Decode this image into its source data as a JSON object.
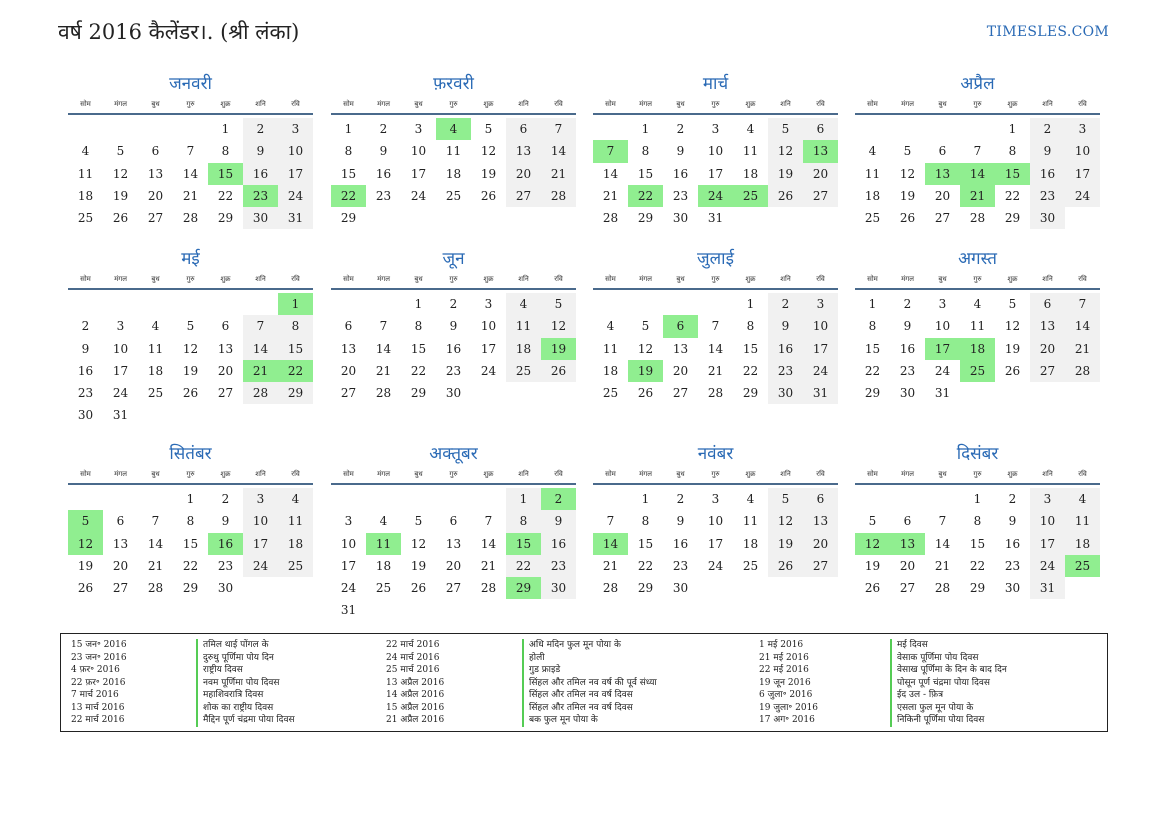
{
  "header": {
    "title": "वर्ष 2016 कैलेंडर।. (श्री लंका)",
    "site": "TIMESLES.COM"
  },
  "weekdays": [
    "सोम",
    "मंगल",
    "बुध",
    "गुरु",
    "शुक्र",
    "शनि",
    "रवि"
  ],
  "months": [
    {
      "name": "जनवरी",
      "offset": 4,
      "days": 31,
      "holidays": [
        15,
        23
      ]
    },
    {
      "name": "फ़रवरी",
      "offset": 0,
      "days": 29,
      "holidays": [
        4,
        22
      ]
    },
    {
      "name": "मार्च",
      "offset": 1,
      "days": 31,
      "holidays": [
        7,
        13,
        22,
        24,
        25
      ]
    },
    {
      "name": "अप्रैल",
      "offset": 4,
      "days": 30,
      "holidays": [
        13,
        14,
        15,
        21
      ]
    },
    {
      "name": "मई",
      "offset": 6,
      "days": 31,
      "holidays": [
        1,
        21,
        22
      ]
    },
    {
      "name": "जून",
      "offset": 2,
      "days": 30,
      "holidays": [
        19
      ]
    },
    {
      "name": "जुलाई",
      "offset": 4,
      "days": 31,
      "holidays": [
        6,
        19
      ]
    },
    {
      "name": "अगस्त",
      "offset": 0,
      "days": 31,
      "holidays": [
        17,
        18,
        25
      ]
    },
    {
      "name": "सितंबर",
      "offset": 3,
      "days": 30,
      "holidays": [
        5,
        12,
        16
      ]
    },
    {
      "name": "अक्तूबर",
      "offset": 5,
      "days": 31,
      "holidays": [
        2,
        11,
        15,
        29
      ]
    },
    {
      "name": "नवंबर",
      "offset": 1,
      "days": 30,
      "holidays": [
        14
      ]
    },
    {
      "name": "दिसंबर",
      "offset": 3,
      "days": 31,
      "holidays": [
        12,
        13,
        25
      ]
    }
  ],
  "legend": {
    "columns": [
      {
        "dates": [
          "15 जन॰ 2016",
          "23 जन॰ 2016",
          "4 फ़र॰ 2016",
          "22 फ़र॰ 2016",
          "7 मार्च 2016",
          "13 मार्च 2016",
          "22 मार्च 2016"
        ],
        "names": [
          "तमिल थाई पोंगल के",
          "दुरुथु पूर्णिमा पोय दिन",
          "राष्ट्रीय दिवस",
          "नवम पूर्णिमा पोय दिवस",
          "महाशिवरात्रि दिवस",
          "शोक का राष्ट्रीय दिवस",
          "मैद्दिन पूर्ण चंद्रमा पोया दिवस"
        ]
      },
      {
        "dates": [
          "22 मार्च 2016",
          "24 मार्च 2016",
          "25 मार्च 2016",
          "13 अप्रैल 2016",
          "14 अप्रैल 2016",
          "15 अप्रैल 2016",
          "21 अप्रैल 2016"
        ],
        "names": [
          "अधि मदिन फुल मून पोया के",
          "होली",
          "गुड फ्राइडे",
          "सिंहल और तमिल नव वर्ष की पूर्व संध्या",
          "सिंहल और तमिल नव वर्ष दिवस",
          "सिंहल और तमिल नव वर्ष दिवस",
          "बक फुल मून पोया के"
        ]
      },
      {
        "dates": [
          "1 मई 2016",
          "21 मई 2016",
          "22 मई 2016",
          "19 जून 2016",
          "6 जुला॰ 2016",
          "19 जुला॰ 2016",
          "17 अग॰ 2016"
        ],
        "names": [
          "मई दिवस",
          "वेसाक पूर्णिमा पोय दिवस",
          "वेसाख पूर्णिमा के दिन के बाद दिन",
          "पोसून पूर्ण चंद्रमा पोया दिवस",
          "ईद उल - फ़ित्र",
          "एसला फुल मून पोया के",
          "निकिनी पूर्णिमा पोया दिवस"
        ]
      }
    ]
  },
  "colors": {
    "accent": "#2a6ab5",
    "holiday": "#90ee90",
    "weekend": "#f1f1f1",
    "rule": "#4a6a8c"
  }
}
